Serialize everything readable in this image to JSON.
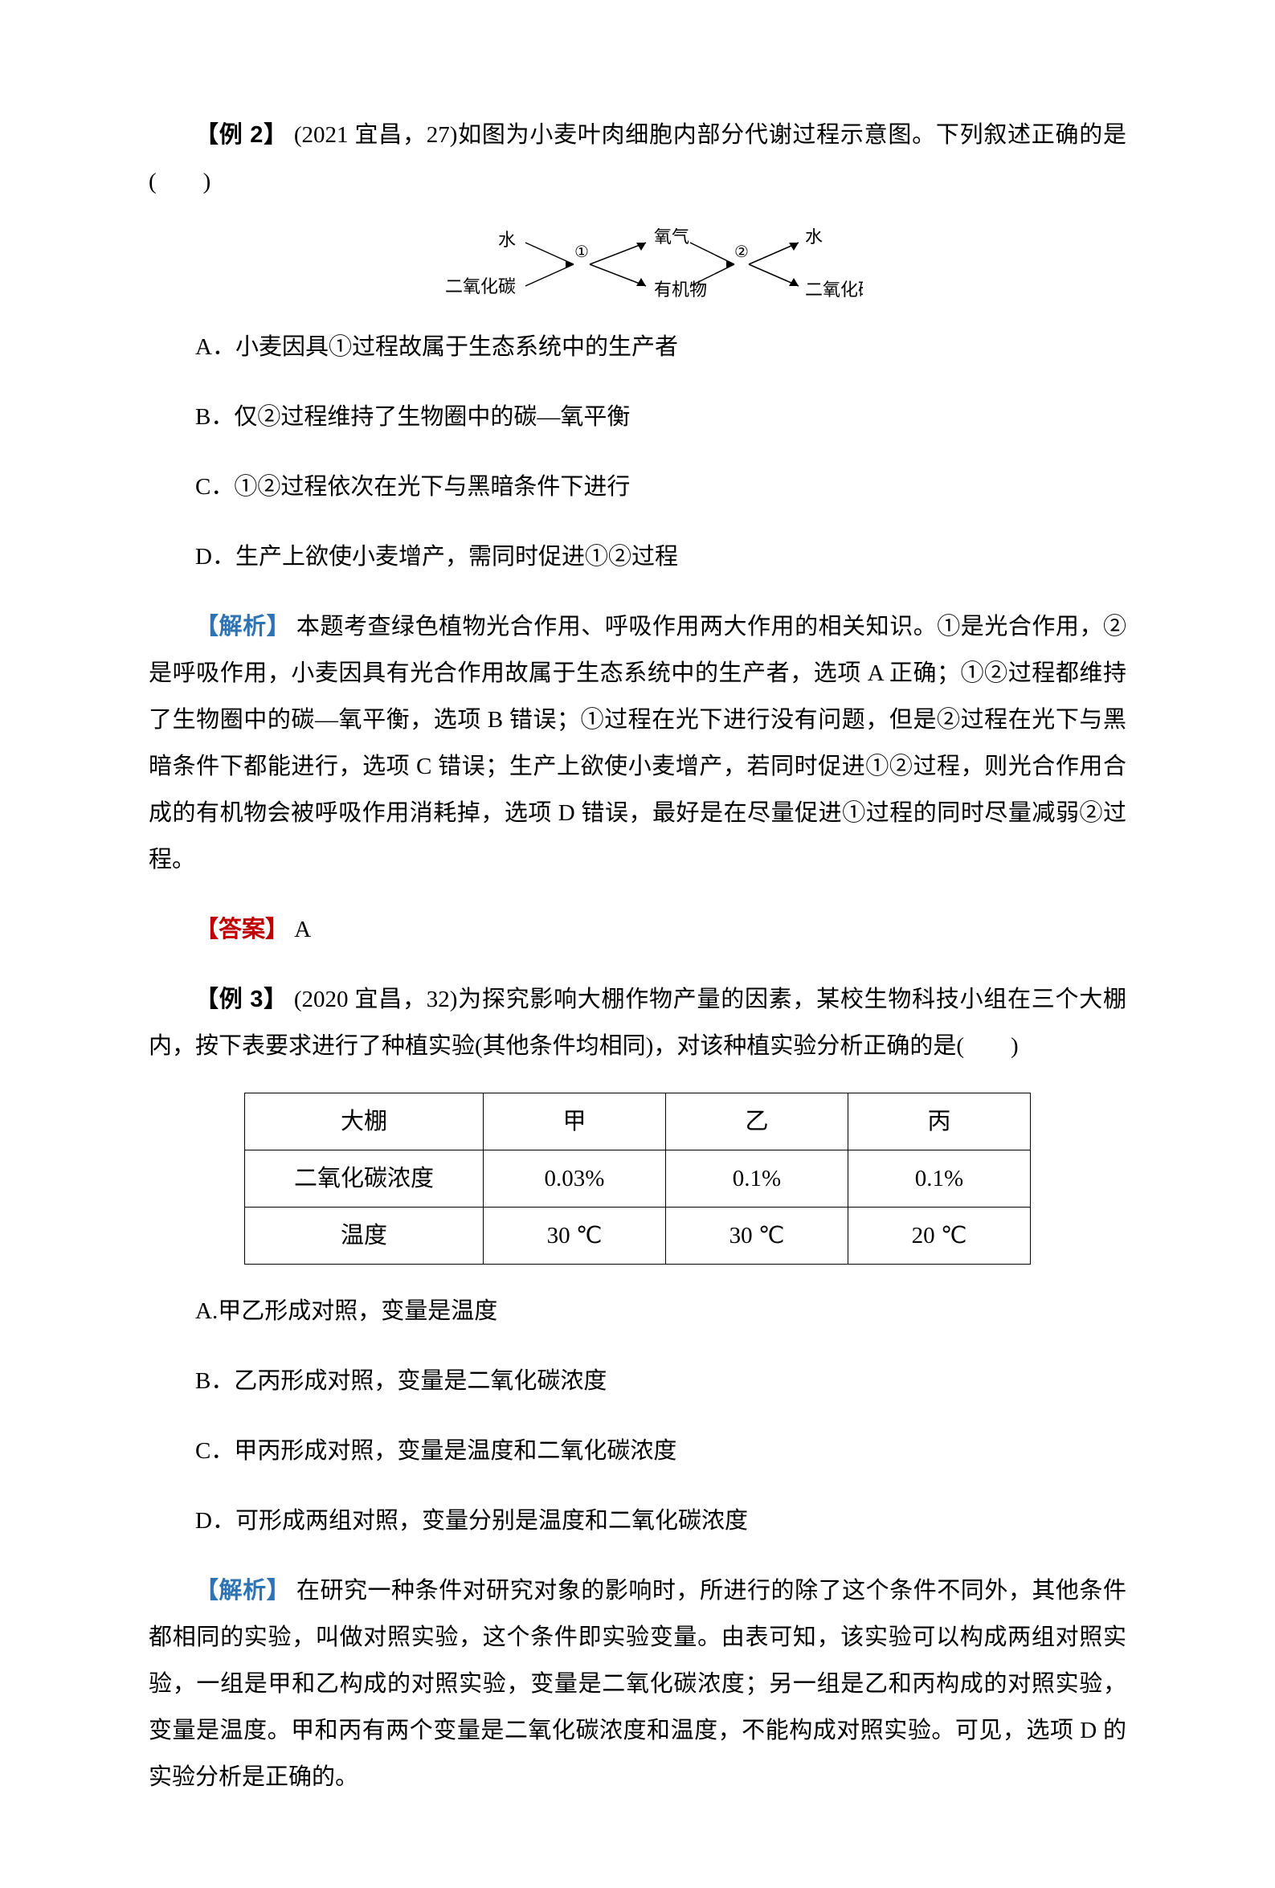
{
  "example2": {
    "label": "【例 2】",
    "source": "(2021 宜昌，27)",
    "stem_after": "如图为小麦叶肉细胞内部分代谢过程示意图。下列叙述正确的是(　　)",
    "diagram": {
      "left_top": "水",
      "left_bottom": "二氧化碳",
      "mid_top": "氧气",
      "mid_bottom": "有机物",
      "right_top": "水",
      "right_bottom": "二氧化碳",
      "circle1": "①",
      "circle2": "②"
    },
    "options": {
      "A": "A．小麦因具①过程故属于生态系统中的生产者",
      "B": "B．仅②过程维持了生物圈中的碳—氧平衡",
      "C": "C．①②过程依次在光下与黑暗条件下进行",
      "D": "D．生产上欲使小麦增产，需同时促进①②过程"
    },
    "analysis_label": "【解析】",
    "analysis_text": "本题考查绿色植物光合作用、呼吸作用两大作用的相关知识。①是光合作用，②是呼吸作用，小麦因具有光合作用故属于生态系统中的生产者，选项 A 正确；①②过程都维持了生物圈中的碳—氧平衡，选项 B 错误；①过程在光下进行没有问题，但是②过程在光下与黑暗条件下都能进行，选项 C 错误；生产上欲使小麦增产，若同时促进①②过程，则光合作用合成的有机物会被呼吸作用消耗掉，选项 D 错误，最好是在尽量促进①过程的同时尽量减弱②过程。",
    "answer_label": "【答案】",
    "answer": "A"
  },
  "example3": {
    "label": "【例 3】",
    "source": "(2020 宜昌，32)",
    "stem_after": "为探究影响大棚作物产量的因素，某校生物科技小组在三个大棚内，按下表要求进行了种植实验(其他条件均相同)，对该种植实验分析正确的是(　　)",
    "table": {
      "headers": [
        "大棚",
        "甲",
        "乙",
        "丙"
      ],
      "rows": [
        [
          "二氧化碳浓度",
          "0.03%",
          "0.1%",
          "0.1%"
        ],
        [
          "温度",
          "30 ℃",
          "30 ℃",
          "20 ℃"
        ]
      ],
      "col_widths": [
        "260px",
        "190px",
        "190px",
        "190px"
      ]
    },
    "options": {
      "A": "A.甲乙形成对照，变量是温度",
      "B": "B．乙丙形成对照，变量是二氧化碳浓度",
      "C": "C．甲丙形成对照，变量是温度和二氧化碳浓度",
      "D": "D．可形成两组对照，变量分别是温度和二氧化碳浓度"
    },
    "analysis_label": "【解析】",
    "analysis_text": "在研究一种条件对研究对象的影响时，所进行的除了这个条件不同外，其他条件都相同的实验，叫做对照实验，这个条件即实验变量。由表可知，该实验可以构成两组对照实验，一组是甲和乙构成的对照实验，变量是二氧化碳浓度；另一组是乙和丙构成的对照实验，变量是温度。甲和丙有两个变量是二氧化碳浓度和温度，不能构成对照实验。可见，选项 D 的实验分析是正确的。"
  }
}
